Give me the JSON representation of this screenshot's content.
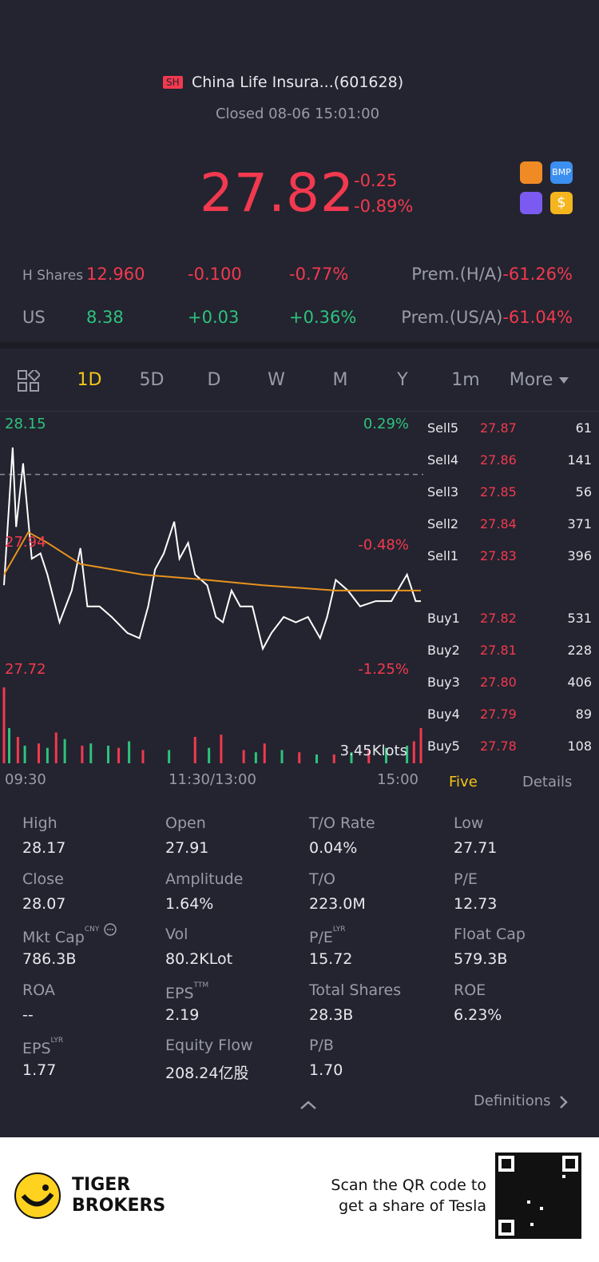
{
  "header": {
    "exchange": "SH",
    "name": "China Life Insura...(601628)",
    "status": "Closed 08-06 15:01:00"
  },
  "quote": {
    "price": "27.82",
    "change": "-0.25",
    "change_pct": "-0.89%"
  },
  "badges": [
    "BMP",
    "$"
  ],
  "related": [
    {
      "market": "H Shares",
      "price": "12.960",
      "change": "-0.100",
      "change_pct": "-0.77%",
      "prem_label": "Prem.(H/A)",
      "prem": "-61.26%"
    },
    {
      "market": "US",
      "price": "8.38",
      "change": "+0.03",
      "change_pct": "+0.36%",
      "prem_label": "Prem.(US/A)",
      "prem": "-61.04%"
    }
  ],
  "tabs": {
    "items": [
      "1D",
      "5D",
      "D",
      "W",
      "M",
      "Y",
      "1m",
      "More"
    ],
    "active": 0
  },
  "chart_data": {
    "type": "line",
    "xlim": [
      0,
      240
    ],
    "xticks": [
      {
        "value": 0,
        "label": "09:30"
      },
      {
        "value": 120,
        "label": "11:30/13:00"
      },
      {
        "value": 240,
        "label": "15:00"
      }
    ],
    "ylim": [
      27.72,
      28.15
    ],
    "yticks": [
      28.15,
      27.94,
      27.72
    ],
    "y2lim": [
      -1.25,
      0.29
    ],
    "y2ticks": [
      {
        "value": 0.29,
        "label": "0.29%"
      },
      {
        "value": -0.48,
        "label": "-0.48%"
      },
      {
        "value": -1.25,
        "label": "-1.25%"
      }
    ],
    "series": [
      {
        "color": "#ffffff",
        "x": [
          0,
          5,
          7,
          11,
          16,
          21,
          25,
          32,
          39,
          44,
          48,
          55,
          62,
          71,
          78,
          83,
          87,
          92,
          98,
          101,
          106,
          110,
          117,
          122,
          126,
          131,
          136,
          143,
          149,
          154,
          161,
          168,
          175,
          182,
          186,
          191,
          198,
          205,
          214,
          223,
          232,
          237,
          240
        ],
        "values": [
          27.86,
          28.12,
          27.97,
          28.09,
          27.91,
          27.92,
          27.88,
          27.79,
          27.85,
          27.93,
          27.82,
          27.82,
          27.8,
          27.77,
          27.76,
          27.82,
          27.89,
          27.92,
          27.98,
          27.91,
          27.94,
          27.88,
          27.86,
          27.8,
          27.79,
          27.85,
          27.82,
          27.82,
          27.74,
          27.77,
          27.8,
          27.79,
          27.8,
          27.76,
          27.8,
          27.87,
          27.85,
          27.82,
          27.83,
          27.83,
          27.88,
          27.83,
          27.83
        ]
      },
      {
        "color": "#e8921e",
        "x": [
          0,
          14,
          25,
          44,
          80,
          117,
          149,
          191,
          240
        ],
        "values": [
          27.88,
          27.96,
          27.94,
          27.9,
          27.88,
          27.87,
          27.86,
          27.85,
          27.85
        ]
      }
    ],
    "volume": {
      "max": {
        "value": 3.45,
        "label": "3.45Klots"
      },
      "series": [
        {
          "color": "#f2394f",
          "x": [
            0,
            8,
            20,
            30,
            45,
            66,
            80,
            110,
            125,
            138,
            150,
            170,
            190,
            210,
            236,
            240
          ],
          "values": [
            3.45,
            1.2,
            0.9,
            1.4,
            0.8,
            0.7,
            0.6,
            1.2,
            1.3,
            0.6,
            0.9,
            0.5,
            0.4,
            0.6,
            1.0,
            1.6
          ]
        },
        {
          "color": "#2ec27e",
          "x": [
            3,
            12,
            25,
            35,
            50,
            60,
            72,
            95,
            118,
            145,
            160,
            180,
            200,
            220,
            232
          ],
          "values": [
            1.6,
            0.8,
            0.7,
            1.1,
            0.9,
            0.8,
            1.0,
            0.6,
            0.7,
            0.5,
            0.6,
            0.4,
            0.5,
            0.7,
            0.8
          ]
        }
      ]
    }
  },
  "order_book": {
    "sell": [
      {
        "label": "Sell5",
        "price": "27.87",
        "volume": "61"
      },
      {
        "label": "Sell4",
        "price": "27.86",
        "volume": "141"
      },
      {
        "label": "Sell3",
        "price": "27.85",
        "volume": "56"
      },
      {
        "label": "Sell2",
        "price": "27.84",
        "volume": "371"
      },
      {
        "label": "Sell1",
        "price": "27.83",
        "volume": "396"
      }
    ],
    "buy": [
      {
        "label": "Buy1",
        "price": "27.82",
        "volume": "531"
      },
      {
        "label": "Buy2",
        "price": "27.81",
        "volume": "228"
      },
      {
        "label": "Buy3",
        "price": "27.80",
        "volume": "406"
      },
      {
        "label": "Buy4",
        "price": "27.79",
        "volume": "89"
      },
      {
        "label": "Buy5",
        "price": "27.78",
        "volume": "108"
      }
    ],
    "tabs": [
      "Five",
      "Details"
    ]
  },
  "stats": [
    {
      "label": "High",
      "value": "28.17"
    },
    {
      "label": "Open",
      "value": "27.91"
    },
    {
      "label": "T/O Rate",
      "value": "0.04%"
    },
    {
      "label": "Low",
      "value": "27.71"
    },
    {
      "label": "Close",
      "value": "28.07"
    },
    {
      "label": "Amplitude",
      "value": "1.64%"
    },
    {
      "label": "T/O",
      "value": "223.0M"
    },
    {
      "label": "P/E",
      "value": "12.73"
    },
    {
      "label": "Mkt Cap",
      "sup": "CNY",
      "value": "786.3B"
    },
    {
      "label": "Vol",
      "value": "80.2KLot"
    },
    {
      "label": "P/E",
      "sup": "LYR",
      "value": "15.72"
    },
    {
      "label": "Float Cap",
      "value": "579.3B"
    },
    {
      "label": "ROA",
      "value": "--"
    },
    {
      "label": "EPS",
      "sup": "TTM",
      "value": "2.19"
    },
    {
      "label": "Total Shares",
      "value": "28.3B"
    },
    {
      "label": "ROE",
      "value": "6.23%"
    },
    {
      "label": "EPS",
      "sup": "LYR",
      "value": "1.77"
    },
    {
      "label": "Equity Flow",
      "value": "208.24亿股"
    },
    {
      "label": "P/B",
      "value": "1.70"
    }
  ],
  "definitions": "Definitions",
  "footer": {
    "brand_line1": "TIGER",
    "brand_line2": "BROKERS",
    "promo_line1": "Scan the QR code to",
    "promo_line2": "get a share of Tesla"
  }
}
